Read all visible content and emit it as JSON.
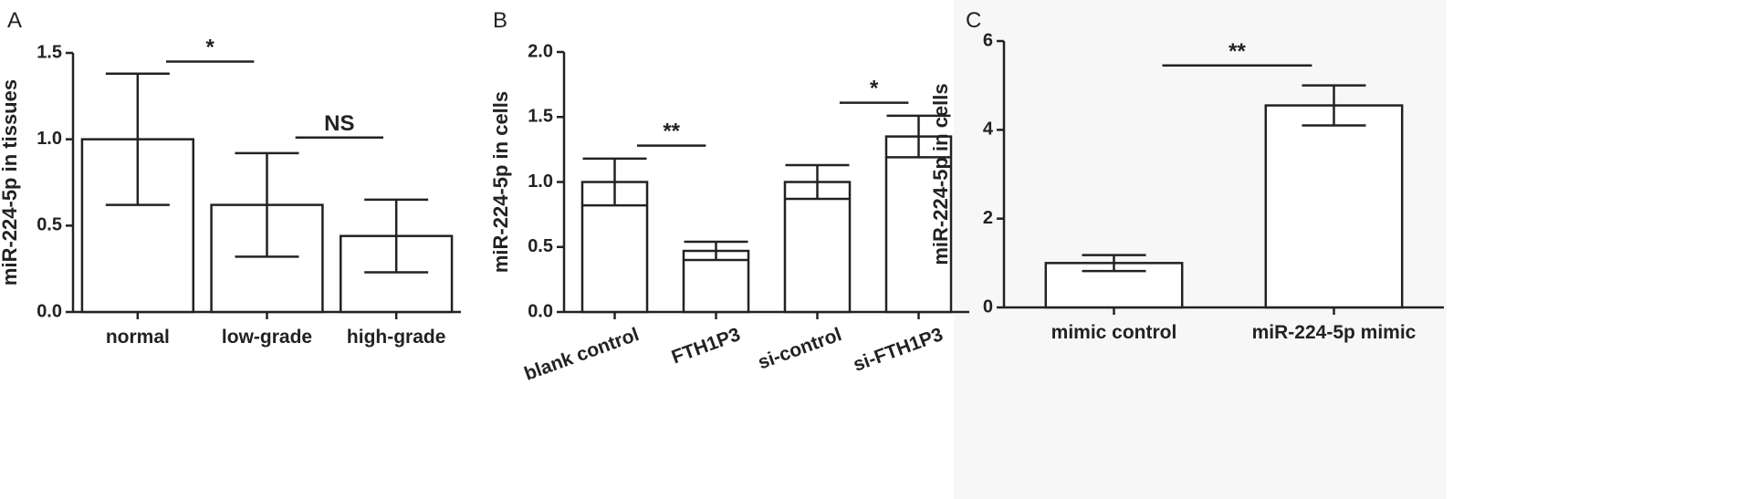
{
  "chart_data": [
    {
      "type": "bar",
      "panel": "A",
      "y_label": "miR-224-5p in tissues",
      "categories": [
        "normal",
        "low-grade",
        "high-grade"
      ],
      "values": [
        1.0,
        0.62,
        0.44
      ],
      "errors": [
        0.38,
        0.3,
        0.21
      ],
      "color": "#ffffff",
      "ylim": [
        0,
        1.5
      ],
      "yticks": [
        {
          "value": 0,
          "label": "0.0"
        },
        0.5,
        {
          "value": 1,
          "label": "1.0"
        },
        1.5
      ],
      "annotations": [
        {
          "text": "*",
          "from": 0,
          "to": 1,
          "y": 1.45
        },
        {
          "text": "NS",
          "from": 1,
          "to": 2,
          "y": 1.01
        }
      ]
    },
    {
      "type": "bar",
      "panel": "B",
      "y_label": "miR-224-5p in cells",
      "categories": [
        "blank control",
        "FTH1P3",
        "si-control",
        "si-FTH1P3"
      ],
      "values": [
        1.0,
        0.47,
        1.0,
        1.35
      ],
      "errors": [
        0.18,
        0.07,
        0.13,
        0.16
      ],
      "color": "#ffffff",
      "ylim": [
        0,
        2
      ],
      "yticks": [
        {
          "value": 0,
          "label": "0.0"
        },
        0.5,
        {
          "value": 1,
          "label": "1.0"
        },
        1.5,
        {
          "value": 2,
          "label": "2.0"
        }
      ],
      "annotations": [
        {
          "text": "**",
          "from": 0,
          "to": 1,
          "y": 1.28
        },
        {
          "text": "*",
          "from": 2,
          "to": 3,
          "y": 1.61
        }
      ]
    },
    {
      "type": "bar",
      "panel": "C",
      "y_label": "miR-224-5p in cells",
      "categories": [
        "mimic control",
        "miR-224-5p mimic"
      ],
      "values": [
        1.0,
        4.55
      ],
      "errors": [
        0.18,
        0.45
      ],
      "color": "#ffffff",
      "ylim": [
        0,
        6
      ],
      "yticks": [
        0,
        2,
        4,
        6
      ],
      "annotations": [
        {
          "text": "**",
          "from": 0,
          "to": 1,
          "y": 5.45
        }
      ]
    }
  ]
}
